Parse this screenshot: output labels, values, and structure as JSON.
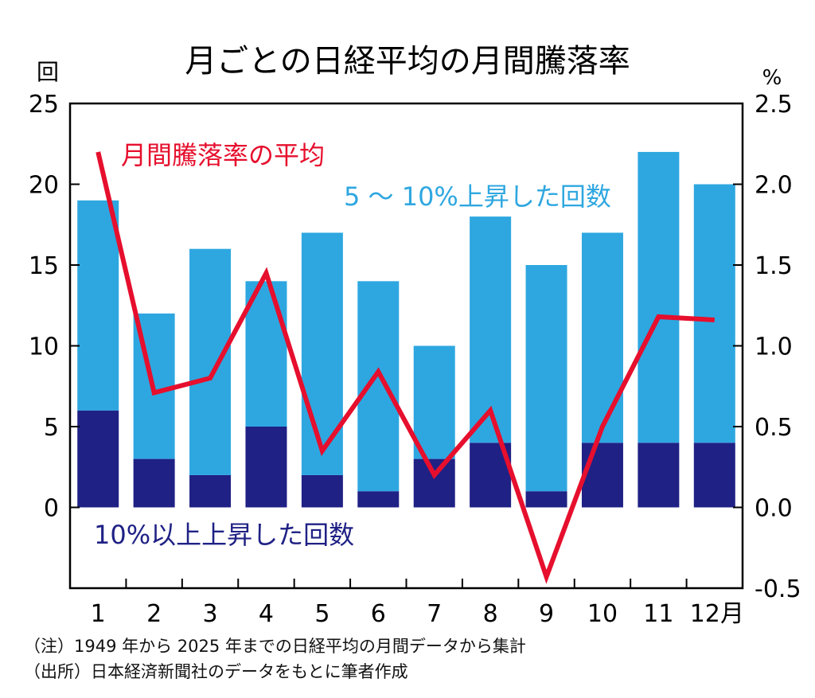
{
  "chart_data": {
    "type": "bar+line",
    "title": "月ごとの日経平均の月間騰落率",
    "left_axis_unit": "回",
    "right_axis_unit": "%",
    "x_unit": "月",
    "categories": [
      "1",
      "2",
      "3",
      "4",
      "5",
      "6",
      "7",
      "8",
      "9",
      "10",
      "11",
      "12"
    ],
    "left_ylim": [
      -5,
      25
    ],
    "left_ticks": [
      "25",
      "20",
      "15",
      "10",
      "5",
      "0"
    ],
    "left_tick_values": [
      25,
      20,
      15,
      10,
      5,
      0
    ],
    "right_ylim": [
      -0.5,
      2.5
    ],
    "right_ticks": [
      "2.5",
      "2.0",
      "1.5",
      "1.0",
      "0.5",
      "0.0",
      "-0.5"
    ],
    "right_tick_values": [
      2.5,
      2.0,
      1.5,
      1.0,
      0.5,
      0.0,
      -0.5
    ],
    "series": [
      {
        "name": "10%以上上昇した回数",
        "type": "bar",
        "axis": "left",
        "color": "#1f2185",
        "values": [
          6,
          3,
          2,
          5,
          2,
          1,
          3,
          4,
          1,
          4,
          4,
          4
        ]
      },
      {
        "name": "5 ～ 10%上昇した回数",
        "type": "bar",
        "axis": "left",
        "color": "#2ea7e0",
        "values": [
          13,
          9,
          14,
          9,
          15,
          13,
          7,
          14,
          14,
          13,
          18,
          16
        ]
      },
      {
        "name": "月間騰落率の平均",
        "type": "line",
        "axis": "right",
        "color": "#e60f2d",
        "values": [
          2.2,
          0.71,
          0.8,
          1.45,
          0.35,
          0.84,
          0.2,
          0.6,
          -0.43,
          0.5,
          1.18,
          1.16
        ]
      }
    ]
  },
  "notes": {
    "note1": "（注）1949 年から 2025 年までの日経平均の月間データから集計",
    "note2": "（出所）日本経済新聞社のデータをもとに筆者作成"
  }
}
